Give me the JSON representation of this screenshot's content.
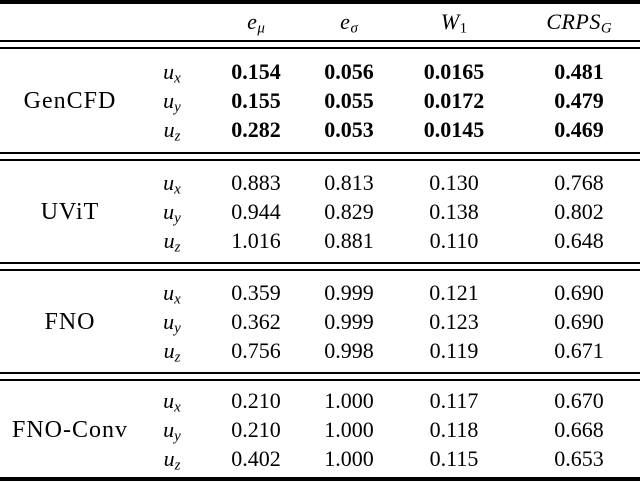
{
  "table": {
    "header": {
      "columns": [
        {
          "main": "e",
          "sub": "μ"
        },
        {
          "main": "e",
          "sub": "σ"
        },
        {
          "main": "W",
          "sub": "1"
        },
        {
          "main": "CRPS",
          "sub": "G"
        }
      ]
    },
    "groups": [
      {
        "model": "GenCFD",
        "bold": true,
        "rows": [
          {
            "component": {
              "main": "u",
              "sub": "x"
            },
            "values": [
              "0.154",
              "0.056",
              "0.0165",
              "0.481"
            ]
          },
          {
            "component": {
              "main": "u",
              "sub": "y"
            },
            "values": [
              "0.155",
              "0.055",
              "0.0172",
              "0.479"
            ]
          },
          {
            "component": {
              "main": "u",
              "sub": "z"
            },
            "values": [
              "0.282",
              "0.053",
              "0.0145",
              "0.469"
            ]
          }
        ]
      },
      {
        "model": "UViT",
        "bold": false,
        "rows": [
          {
            "component": {
              "main": "u",
              "sub": "x"
            },
            "values": [
              "0.883",
              "0.813",
              "0.130",
              "0.768"
            ]
          },
          {
            "component": {
              "main": "u",
              "sub": "y"
            },
            "values": [
              "0.944",
              "0.829",
              "0.138",
              "0.802"
            ]
          },
          {
            "component": {
              "main": "u",
              "sub": "z"
            },
            "values": [
              "1.016",
              "0.881",
              "0.110",
              "0.648"
            ]
          }
        ]
      },
      {
        "model": "FNO",
        "bold": false,
        "rows": [
          {
            "component": {
              "main": "u",
              "sub": "x"
            },
            "values": [
              "0.359",
              "0.999",
              "0.121",
              "0.690"
            ]
          },
          {
            "component": {
              "main": "u",
              "sub": "y"
            },
            "values": [
              "0.362",
              "0.999",
              "0.123",
              "0.690"
            ]
          },
          {
            "component": {
              "main": "u",
              "sub": "z"
            },
            "values": [
              "0.756",
              "0.998",
              "0.119",
              "0.671"
            ]
          }
        ]
      },
      {
        "model": "FNO-Conv",
        "bold": false,
        "rows": [
          {
            "component": {
              "main": "u",
              "sub": "x"
            },
            "values": [
              "0.210",
              "1.000",
              "0.117",
              "0.670"
            ]
          },
          {
            "component": {
              "main": "u",
              "sub": "y"
            },
            "values": [
              "0.210",
              "1.000",
              "0.118",
              "0.668"
            ]
          },
          {
            "component": {
              "main": "u",
              "sub": "z"
            },
            "values": [
              "0.402",
              "1.000",
              "0.115",
              "0.653"
            ]
          }
        ]
      }
    ]
  },
  "colors": {
    "background": "#ffffff",
    "text": "#000000",
    "rule": "#000000"
  }
}
